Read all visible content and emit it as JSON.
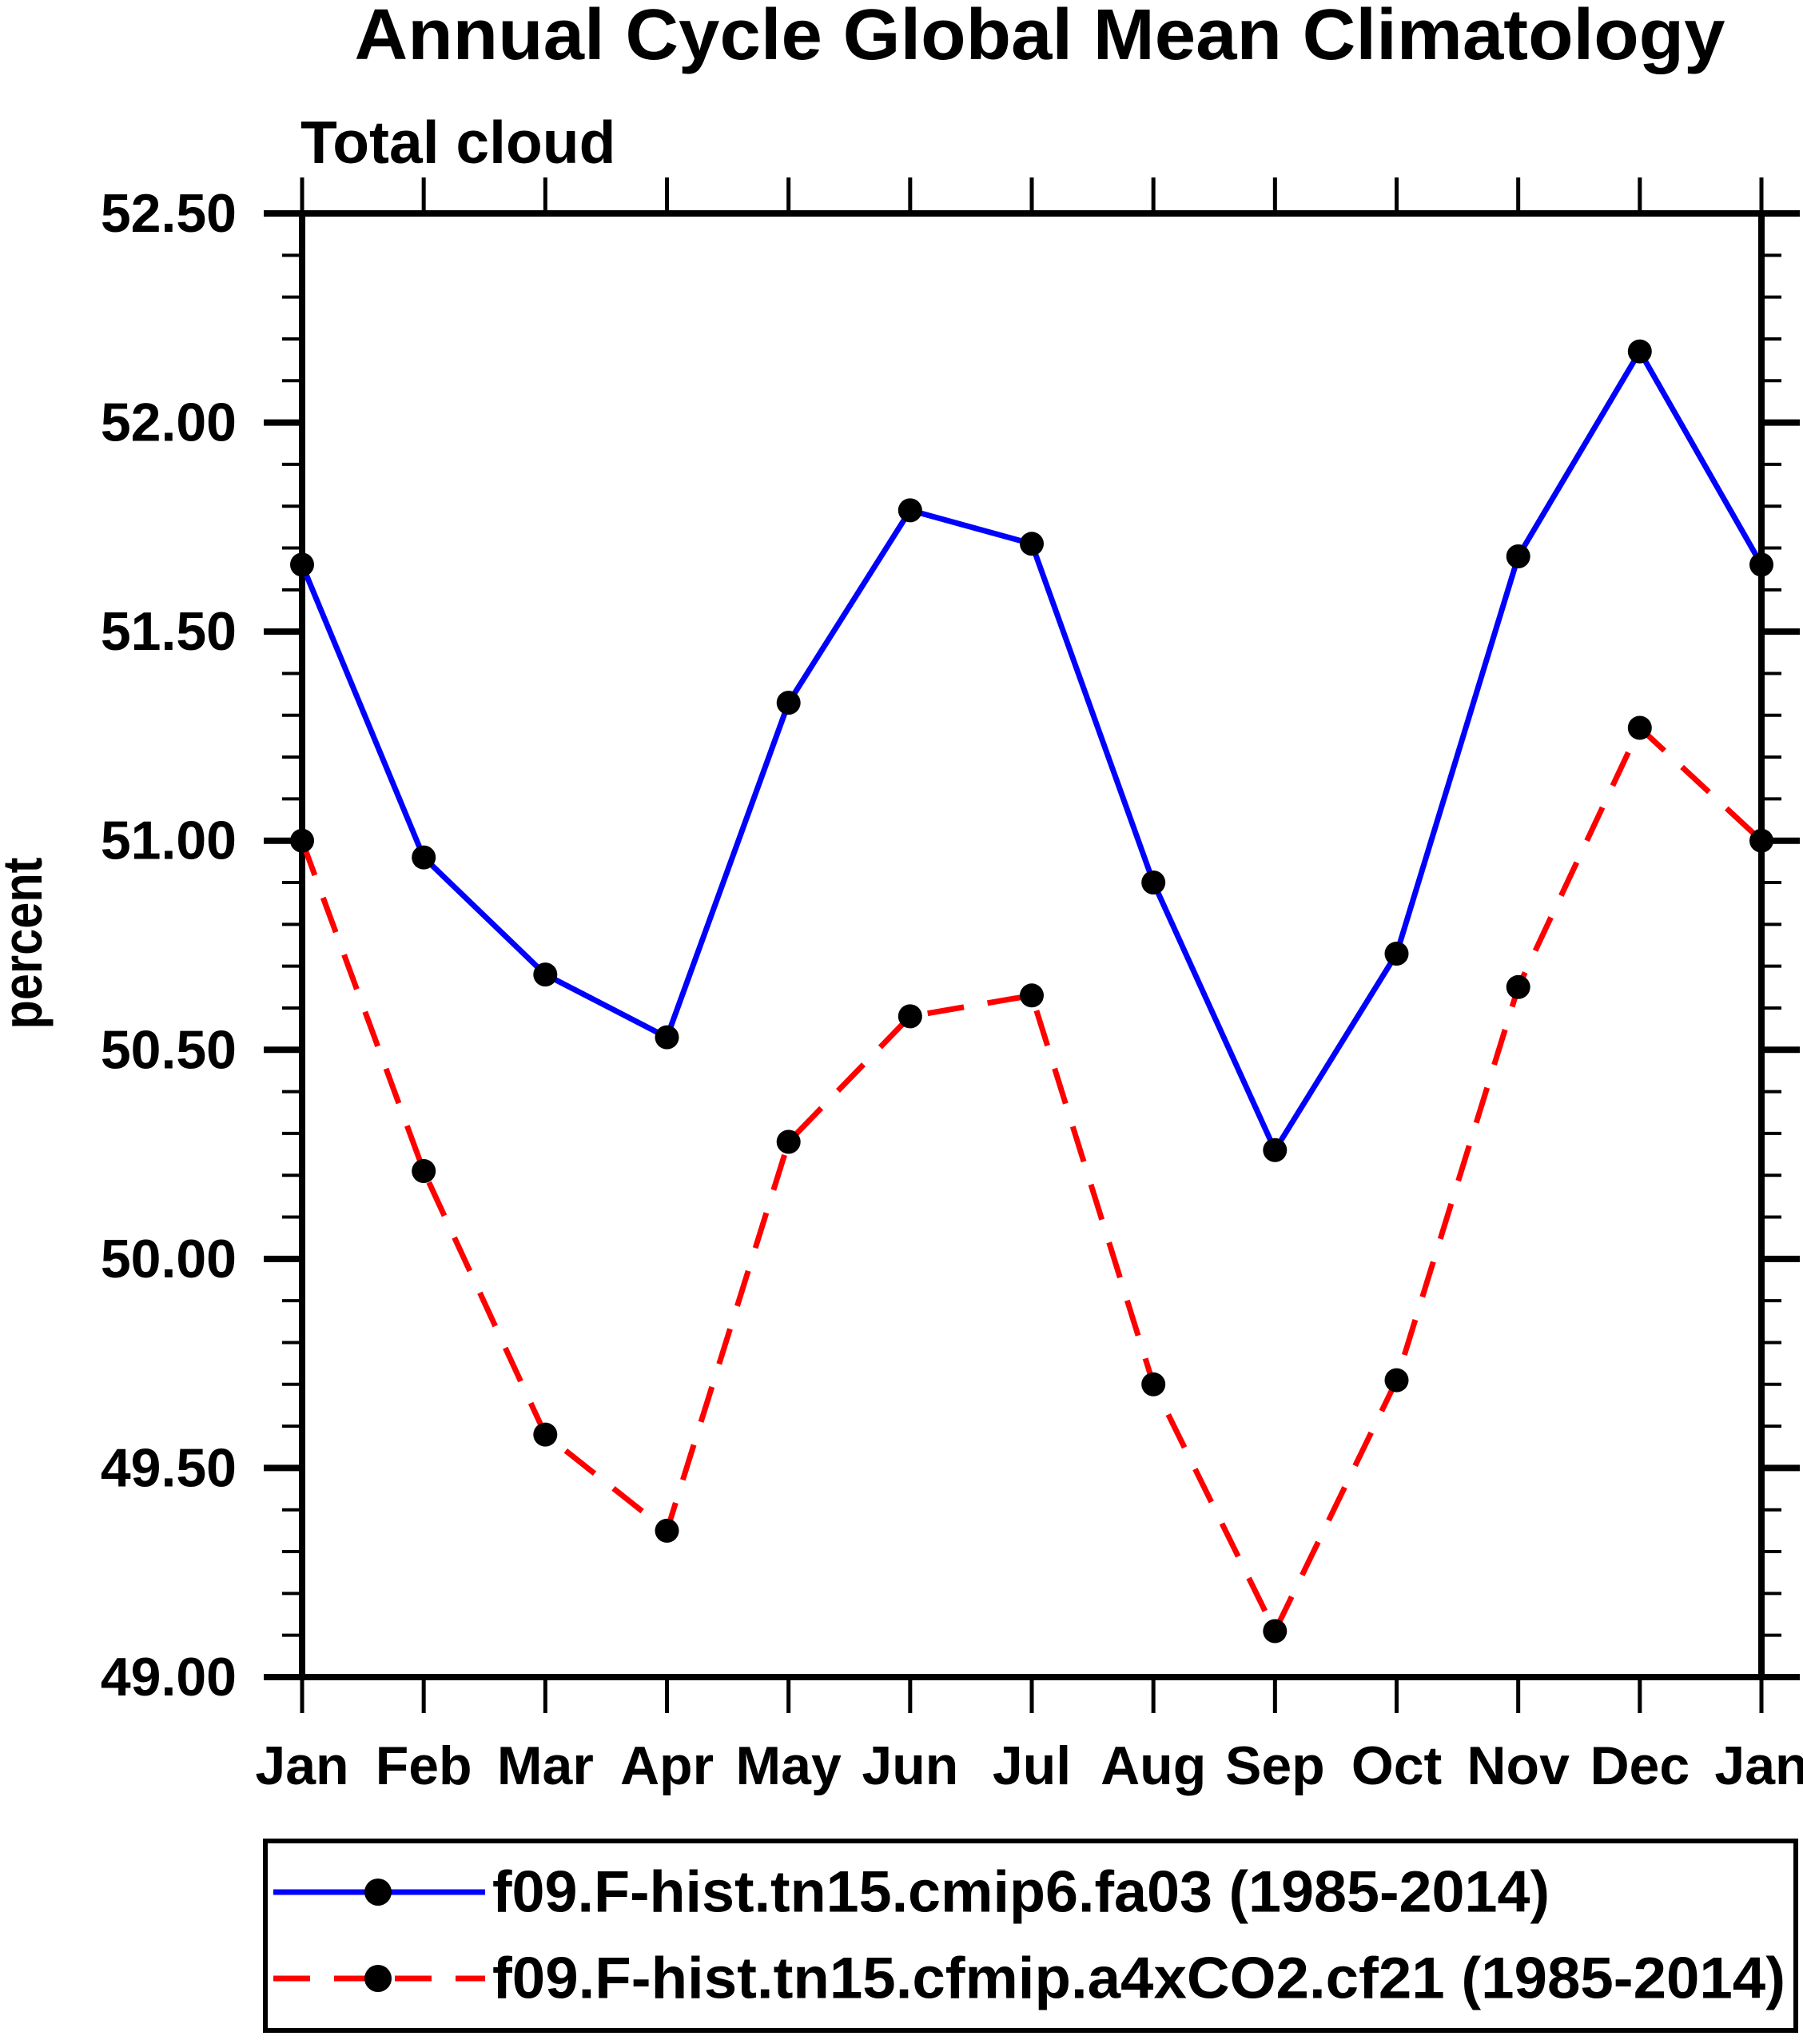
{
  "title": "Annual Cycle Global Mean Climatology",
  "subtitle": "Total cloud",
  "ylabel": "percent",
  "chart_data": {
    "type": "line",
    "title": "Annual Cycle Global Mean Climatology",
    "subtitle": "Total cloud",
    "xlabel": "",
    "ylabel": "percent",
    "ylim": [
      49.0,
      52.5
    ],
    "ytick_step": 0.5,
    "yminor_step": 0.1,
    "grid": false,
    "legend_position": "bottom",
    "ytick_labels": [
      "52.50",
      "52.00",
      "51.50",
      "51.00",
      "50.50",
      "50.00",
      "49.50",
      "49.00"
    ],
    "categories": [
      "Jan",
      "Feb",
      "Mar",
      "Apr",
      "May",
      "Jun",
      "Jul",
      "Aug",
      "Sep",
      "Oct",
      "Nov",
      "Dec",
      "Jan"
    ],
    "series": [
      {
        "name": "f09.F-hist.tn15.cmip6.fa03 (1985-2014)",
        "color": "#0000ff",
        "line_style": "solid",
        "marker": "filled-circle",
        "marker_color": "#000000",
        "values": [
          51.66,
          50.96,
          50.68,
          50.53,
          51.33,
          51.79,
          51.71,
          50.9,
          50.26,
          50.73,
          51.68,
          52.17,
          51.66
        ]
      },
      {
        "name": "f09.F-hist.tn15.cfmip.a4xCO2.cf21 (1985-2014)",
        "color": "#ff0000",
        "line_style": "dashed",
        "marker": "filled-circle",
        "marker_color": "#000000",
        "values": [
          51.0,
          50.21,
          49.58,
          49.35,
          50.28,
          50.58,
          50.63,
          49.7,
          49.11,
          49.71,
          50.65,
          51.27,
          51.0
        ]
      }
    ]
  }
}
